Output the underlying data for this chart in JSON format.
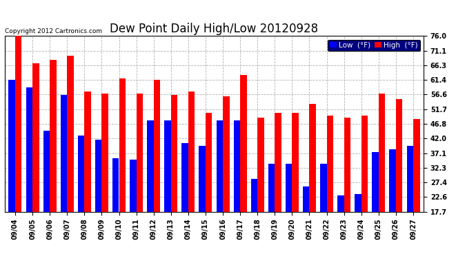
{
  "title": "Dew Point Daily High/Low 20120928",
  "copyright": "Copyright 2012 Cartronics.com",
  "legend_low": "Low  (°F)",
  "legend_high": "High  (°F)",
  "dates": [
    "09/04",
    "09/05",
    "09/06",
    "09/07",
    "09/08",
    "09/09",
    "09/10",
    "09/11",
    "09/12",
    "09/13",
    "09/14",
    "09/15",
    "09/16",
    "09/17",
    "09/18",
    "09/19",
    "09/20",
    "09/21",
    "09/22",
    "09/23",
    "09/24",
    "09/25",
    "09/26",
    "09/27"
  ],
  "high_values": [
    76.0,
    67.0,
    68.0,
    69.5,
    57.5,
    57.0,
    62.0,
    57.0,
    61.5,
    56.5,
    57.5,
    50.5,
    56.0,
    63.0,
    49.0,
    50.5,
    50.5,
    53.5,
    49.5,
    49.0,
    49.5,
    57.0,
    55.0,
    48.5
  ],
  "low_values": [
    61.5,
    59.0,
    44.5,
    56.5,
    43.0,
    41.5,
    35.5,
    35.0,
    48.0,
    48.0,
    40.5,
    39.5,
    48.0,
    48.0,
    28.5,
    33.5,
    33.5,
    26.0,
    33.5,
    23.0,
    23.5,
    37.5,
    38.5,
    39.5
  ],
  "ymin": 17.7,
  "ymax": 76.0,
  "yticks": [
    17.7,
    22.6,
    27.4,
    32.3,
    37.1,
    42.0,
    46.8,
    51.7,
    56.6,
    61.4,
    66.3,
    71.1,
    76.0
  ],
  "bar_width": 0.38,
  "bg_color": "#ffffff",
  "plot_bg_color": "#ffffff",
  "grid_color": "#b0b0b0",
  "high_color": "#ff0000",
  "low_color": "#0000ff",
  "title_fontsize": 12,
  "tick_fontsize": 7,
  "legend_fontsize": 7.5,
  "copyright_fontsize": 6.5
}
